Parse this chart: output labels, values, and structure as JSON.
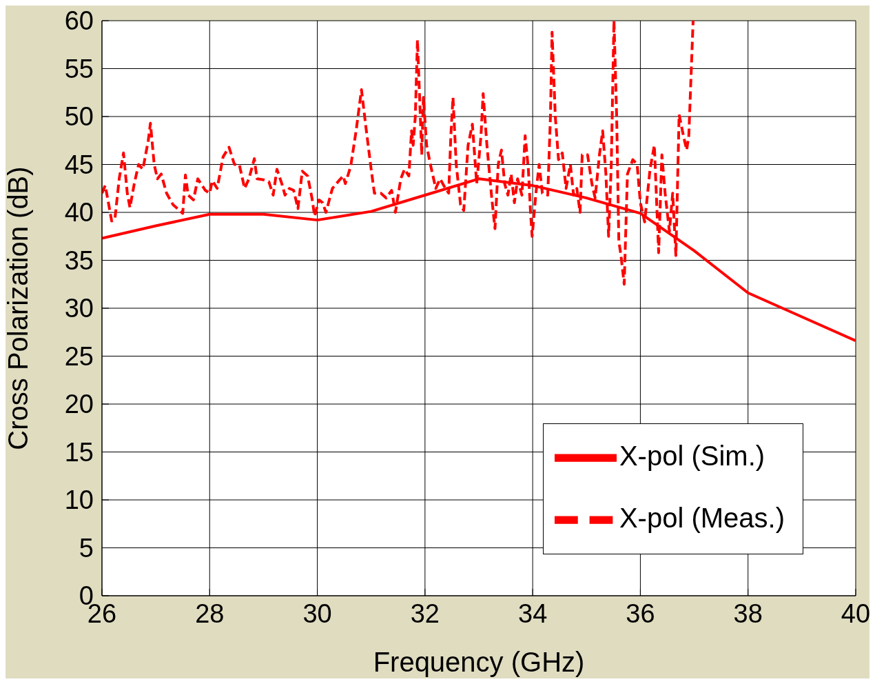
{
  "chart_data": {
    "type": "line",
    "xlabel": "Frequency (GHz)",
    "ylabel": "Cross Polarization (dB)",
    "xlim": [
      26,
      40
    ],
    "xticks": [
      26,
      28,
      30,
      32,
      34,
      36,
      38,
      40
    ],
    "ylim": [
      0,
      60
    ],
    "yticks": [
      0,
      5,
      10,
      15,
      20,
      25,
      30,
      35,
      40,
      45,
      50,
      55,
      60
    ],
    "grid": true,
    "legend": "bottom right",
    "marker": "none",
    "series": [
      {
        "name": "X-pol (Sim.)",
        "color": "#ff0000",
        "line_style": "solid",
        "x": [
          26,
          27,
          28,
          29,
          30,
          31,
          32,
          33,
          34,
          35,
          36,
          37,
          38,
          39,
          40
        ],
        "values": [
          37.3,
          38.6,
          39.8,
          39.8,
          39.2,
          40.1,
          41.8,
          43.5,
          42.8,
          41.5,
          39.9,
          36.0,
          31.6,
          29.1,
          26.6
        ]
      },
      {
        "name": "X-pol (Meas.)",
        "color": "#ff0000",
        "line_style": "dashed",
        "x": [
          26.0,
          26.06,
          26.12,
          26.18,
          26.24,
          26.32,
          26.4,
          26.47,
          26.52,
          26.6,
          26.68,
          26.76,
          26.86,
          26.9,
          26.97,
          27.03,
          27.1,
          27.2,
          27.32,
          27.44,
          27.5,
          27.55,
          27.6,
          27.7,
          27.78,
          27.92,
          28.0,
          28.05,
          28.14,
          28.25,
          28.36,
          28.46,
          28.55,
          28.65,
          28.73,
          28.83,
          28.88,
          29.0,
          29.1,
          29.18,
          29.25,
          29.34,
          29.4,
          29.48,
          29.56,
          29.64,
          29.72,
          29.82,
          29.9,
          29.95,
          30.03,
          30.1,
          30.16,
          30.28,
          30.4,
          30.48,
          30.52,
          30.62,
          30.72,
          30.82,
          30.9,
          31.0,
          31.06,
          31.18,
          31.28,
          31.38,
          31.45,
          31.55,
          31.62,
          31.7,
          31.75,
          31.78,
          31.82,
          31.86,
          31.9,
          31.94,
          31.97,
          32.03,
          32.1,
          32.2,
          32.28,
          32.38,
          32.44,
          32.48,
          32.52,
          32.58,
          32.66,
          32.72,
          32.8,
          32.88,
          32.96,
          33.04,
          33.08,
          33.15,
          33.24,
          33.3,
          33.36,
          33.42,
          33.48,
          33.54,
          33.6,
          33.66,
          33.72,
          33.8,
          33.86,
          33.92,
          33.96,
          33.99,
          34.06,
          34.12,
          34.18,
          34.28,
          34.33,
          34.36,
          34.42,
          34.48,
          34.55,
          34.62,
          34.7,
          34.76,
          34.82,
          34.88,
          34.92,
          35.02,
          35.1,
          35.16,
          35.24,
          35.3,
          35.36,
          35.41,
          35.46,
          35.51,
          35.56,
          35.6,
          35.64,
          35.7,
          35.76,
          35.86,
          35.94,
          36.0,
          36.08,
          36.18,
          36.26,
          36.34,
          36.4,
          36.46,
          36.54,
          36.6,
          36.66,
          36.72,
          36.8,
          36.86,
          36.9,
          36.98
        ],
        "values": [
          42.0,
          42.8,
          41.0,
          39.1,
          39.3,
          43.5,
          46.2,
          42.0,
          40.5,
          43.0,
          45.0,
          44.5,
          47.5,
          49.3,
          45.0,
          43.5,
          44.0,
          42.0,
          40.8,
          40.2,
          39.9,
          43.9,
          41.8,
          41.3,
          43.5,
          42.3,
          42.0,
          43.3,
          42.5,
          45.8,
          46.8,
          45.0,
          45.0,
          42.5,
          43.5,
          45.6,
          43.5,
          43.4,
          43.2,
          41.8,
          44.5,
          43.0,
          41.8,
          42.5,
          42.3,
          40.4,
          44.3,
          43.8,
          41.5,
          39.6,
          41.3,
          41.0,
          40.0,
          42.5,
          43.3,
          43.8,
          43.0,
          44.8,
          48.5,
          52.8,
          49.0,
          44.5,
          42.0,
          42.0,
          41.5,
          42.3,
          40.0,
          43.5,
          44.5,
          43.8,
          48.5,
          47.0,
          50.0,
          58.0,
          52.0,
          46.0,
          52.0,
          47.0,
          45.0,
          42.5,
          43.5,
          42.5,
          42.0,
          48.0,
          52.0,
          45.0,
          40.8,
          40.2,
          47.0,
          49.2,
          43.0,
          48.0,
          52.4,
          47.0,
          41.5,
          38.3,
          45.0,
          46.5,
          43.0,
          41.8,
          44.0,
          41.0,
          43.5,
          41.8,
          48.0,
          44.5,
          40.0,
          37.5,
          42.0,
          45.0,
          42.0,
          41.8,
          50.0,
          58.8,
          50.0,
          45.5,
          46.2,
          42.5,
          45.0,
          41.8,
          42.5,
          40.0,
          46.0,
          46.0,
          43.0,
          41.5,
          46.0,
          48.5,
          44.0,
          37.5,
          45.0,
          60.0,
          50.0,
          37.0,
          35.5,
          32.5,
          44.0,
          45.5,
          45.0,
          41.0,
          39.0,
          44.5,
          47.0,
          35.8,
          46.0,
          42.0,
          38.0,
          42.0,
          35.5,
          50.2,
          48.0,
          46.5,
          48.0,
          60.0
        ]
      }
    ]
  }
}
